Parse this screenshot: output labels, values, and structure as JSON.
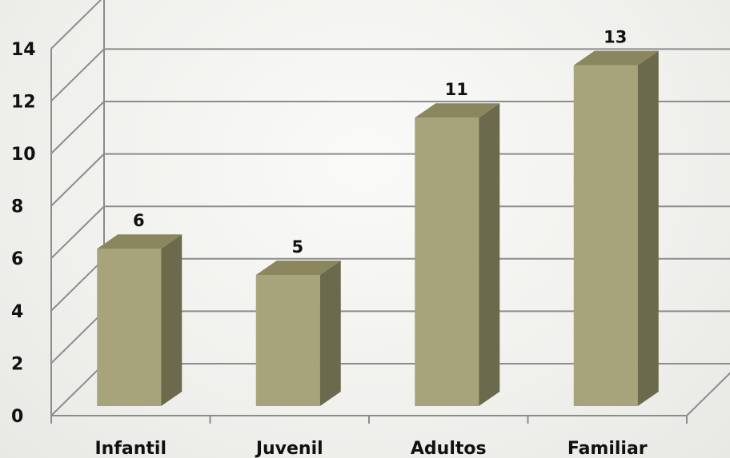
{
  "chart_data": {
    "type": "bar",
    "style": "3d-column",
    "categories": [
      "Infantil",
      "Juvenil",
      "Adultos",
      "Familiar"
    ],
    "values": [
      6,
      5,
      11,
      13
    ],
    "data_labels": [
      "6",
      "5",
      "11",
      "13"
    ],
    "ylim": [
      0,
      14
    ],
    "yticks": [
      0,
      2,
      4,
      6,
      8,
      10,
      12,
      14
    ],
    "ytick_labels": [
      "0",
      "2",
      "4",
      "6",
      "8",
      "10",
      "12",
      "14"
    ],
    "grid": true,
    "legend": "none",
    "title": "",
    "xlabel": "",
    "ylabel": "",
    "colors": {
      "bar_front": "#a7a47c",
      "bar_side": "#6b6a4c",
      "bar_top": "#8a875f",
      "gridline": "#8c8c8c",
      "text": "#111111"
    }
  }
}
